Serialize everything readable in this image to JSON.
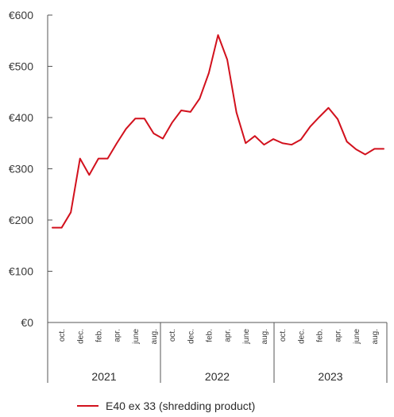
{
  "chart_data": {
    "type": "line",
    "currency_prefix": "€",
    "ylim": [
      0,
      600
    ],
    "y_ticks": [
      "€0",
      "€100",
      "€200",
      "€300",
      "€400",
      "€500",
      "€600"
    ],
    "grid": false,
    "legend_position": "bottom-left",
    "month_tick_labels": [
      "oct.",
      "dec.",
      "feb.",
      "apr.",
      "june",
      "aug.",
      "oct.",
      "dec.",
      "feb.",
      "apr.",
      "june",
      "aug.",
      "oct.",
      "dec.",
      "feb.",
      "apr.",
      "june",
      "aug."
    ],
    "year_labels": [
      "2021",
      "2022",
      "2023"
    ],
    "x": [
      "2020-09",
      "2020-10",
      "2020-11",
      "2020-12",
      "2021-01",
      "2021-02",
      "2021-03",
      "2021-04",
      "2021-05",
      "2021-06",
      "2021-07",
      "2021-08",
      "2021-09",
      "2021-10",
      "2021-11",
      "2021-12",
      "2022-01",
      "2022-02",
      "2022-03",
      "2022-04",
      "2022-05",
      "2022-06",
      "2022-07",
      "2022-08",
      "2022-09",
      "2022-10",
      "2022-11",
      "2022-12",
      "2023-01",
      "2023-02",
      "2023-03",
      "2023-04",
      "2023-05",
      "2023-06",
      "2023-07",
      "2023-08",
      "2023-09"
    ],
    "series": [
      {
        "name": "E40 ex 33 (shredding product)",
        "color": "#d2111d",
        "values": [
          185,
          185,
          215,
          320,
          288,
          320,
          320,
          350,
          378,
          398,
          398,
          369,
          359,
          390,
          414,
          411,
          437,
          487,
          561,
          513,
          410,
          350,
          364,
          347,
          358,
          350,
          347,
          357,
          382,
          401,
          419,
          397,
          353,
          338,
          328,
          339,
          339
        ]
      }
    ]
  }
}
